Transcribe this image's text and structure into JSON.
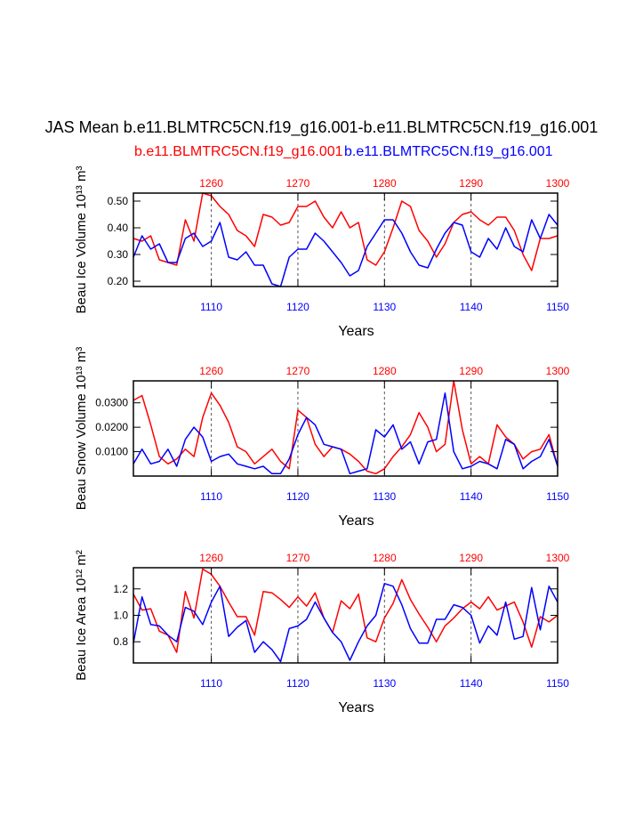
{
  "page": {
    "title": "JAS Mean b.e11.BLMTRC5CN.f19_g16.001-b.e11.BLMTRC5CN.f19_g16.001",
    "legend_red": "b.e11.BLMTRC5CN.f19_g16.001",
    "legend_blue": "b.e11.BLMTRC5CN.f19_g16.001",
    "red_color": "#ff0000",
    "blue_color": "#0000ff"
  },
  "chart_data": [
    {
      "type": "line",
      "ylabel": "Beau Ice Volume 10¹³ m³",
      "xlabel": "Years",
      "ylim": [
        0.18,
        0.53
      ],
      "yticks": [
        0.2,
        0.3,
        0.4,
        0.5
      ],
      "ytick_labels": [
        "0.20",
        "0.30",
        "0.40",
        "0.50"
      ],
      "bottom_axis": {
        "range": [
          1101,
          1150
        ],
        "ticks": [
          1110,
          1120,
          1130,
          1140,
          1150
        ],
        "labels": [
          "1110",
          "1120",
          "1130",
          "1140",
          "1150"
        ]
      },
      "top_axis": {
        "range": [
          1251,
          1300
        ],
        "ticks": [
          1260,
          1270,
          1280,
          1290,
          1300
        ],
        "labels": [
          "1260",
          "1270",
          "1280",
          "1290",
          "1300"
        ]
      },
      "vlines_at_bottom_years": [
        1110,
        1120,
        1130,
        1140
      ],
      "series": [
        {
          "name": "b.e11.BLMTRC5CN.f19_g16.001",
          "color": "red",
          "axis": "top",
          "x_start": 1251,
          "values": [
            0.36,
            0.35,
            0.37,
            0.28,
            0.27,
            0.26,
            0.43,
            0.35,
            0.53,
            0.52,
            0.48,
            0.45,
            0.39,
            0.37,
            0.33,
            0.45,
            0.44,
            0.41,
            0.42,
            0.48,
            0.48,
            0.5,
            0.44,
            0.4,
            0.46,
            0.4,
            0.42,
            0.28,
            0.26,
            0.31,
            0.4,
            0.5,
            0.48,
            0.39,
            0.35,
            0.29,
            0.34,
            0.42,
            0.45,
            0.46,
            0.43,
            0.41,
            0.44,
            0.44,
            0.39,
            0.3,
            0.24,
            0.36,
            0.36,
            0.37
          ]
        },
        {
          "name": "b.e11.BLMTRC5CN.f19_g16.001",
          "color": "blue",
          "axis": "bottom",
          "x_start": 1101,
          "values": [
            0.29,
            0.37,
            0.32,
            0.34,
            0.27,
            0.27,
            0.36,
            0.38,
            0.33,
            0.35,
            0.42,
            0.29,
            0.28,
            0.31,
            0.26,
            0.26,
            0.19,
            0.18,
            0.29,
            0.32,
            0.32,
            0.38,
            0.35,
            0.31,
            0.27,
            0.22,
            0.24,
            0.33,
            0.38,
            0.43,
            0.43,
            0.38,
            0.31,
            0.26,
            0.25,
            0.32,
            0.38,
            0.42,
            0.41,
            0.31,
            0.29,
            0.36,
            0.32,
            0.4,
            0.33,
            0.31,
            0.43,
            0.36,
            0.45,
            0.41
          ]
        }
      ]
    },
    {
      "type": "line",
      "ylabel": "Beau Snow Volume 10¹³ m³",
      "xlabel": "Years",
      "ylim": [
        0.0,
        0.039
      ],
      "yticks": [
        0.01,
        0.02,
        0.03
      ],
      "ytick_labels": [
        "0.0100",
        "0.0200",
        "0.0300"
      ],
      "bottom_axis": {
        "range": [
          1101,
          1150
        ],
        "ticks": [
          1110,
          1120,
          1130,
          1140,
          1150
        ],
        "labels": [
          "1110",
          "1120",
          "1130",
          "1140",
          "1150"
        ]
      },
      "top_axis": {
        "range": [
          1251,
          1300
        ],
        "ticks": [
          1260,
          1270,
          1280,
          1290,
          1300
        ],
        "labels": [
          "1260",
          "1270",
          "1280",
          "1290",
          "1300"
        ]
      },
      "vlines_at_bottom_years": [
        1110,
        1120,
        1130,
        1140
      ],
      "series": [
        {
          "name": "b.e11.BLMTRC5CN.f19_g16.001",
          "color": "red",
          "axis": "top",
          "x_start": 1251,
          "values": [
            0.031,
            0.033,
            0.021,
            0.008,
            0.005,
            0.007,
            0.011,
            0.008,
            0.024,
            0.034,
            0.029,
            0.022,
            0.012,
            0.01,
            0.005,
            0.008,
            0.011,
            0.006,
            0.003,
            0.027,
            0.024,
            0.013,
            0.008,
            0.012,
            0.011,
            0.009,
            0.006,
            0.002,
            0.001,
            0.003,
            0.008,
            0.012,
            0.017,
            0.026,
            0.02,
            0.01,
            0.013,
            0.039,
            0.019,
            0.005,
            0.008,
            0.005,
            0.021,
            0.016,
            0.013,
            0.007,
            0.01,
            0.011,
            0.017,
            0.004
          ]
        },
        {
          "name": "b.e11.BLMTRC5CN.f19_g16.001",
          "color": "blue",
          "axis": "bottom",
          "x_start": 1101,
          "values": [
            0.005,
            0.011,
            0.005,
            0.006,
            0.011,
            0.004,
            0.015,
            0.02,
            0.016,
            0.006,
            0.008,
            0.009,
            0.005,
            0.004,
            0.003,
            0.004,
            0.001,
            0.001,
            0.007,
            0.017,
            0.024,
            0.021,
            0.013,
            0.012,
            0.011,
            0.001,
            0.002,
            0.003,
            0.019,
            0.016,
            0.021,
            0.011,
            0.014,
            0.005,
            0.014,
            0.015,
            0.034,
            0.01,
            0.003,
            0.004,
            0.006,
            0.005,
            0.003,
            0.015,
            0.013,
            0.003,
            0.006,
            0.008,
            0.015,
            0.004
          ]
        }
      ]
    },
    {
      "type": "line",
      "ylabel": "Beau Ice Area 10¹² m²",
      "xlabel": "Years",
      "ylim": [
        0.64,
        1.36
      ],
      "yticks": [
        0.8,
        1.0,
        1.2
      ],
      "ytick_labels": [
        "0.8",
        "1.0",
        "1.2"
      ],
      "bottom_axis": {
        "range": [
          1101,
          1150
        ],
        "ticks": [
          1110,
          1120,
          1130,
          1140,
          1150
        ],
        "labels": [
          "1110",
          "1120",
          "1130",
          "1140",
          "1150"
        ]
      },
      "top_axis": {
        "range": [
          1251,
          1300
        ],
        "ticks": [
          1260,
          1270,
          1280,
          1290,
          1300
        ],
        "labels": [
          "1260",
          "1270",
          "1280",
          "1290",
          "1300"
        ]
      },
      "vlines_at_bottom_years": [
        1110,
        1120,
        1130,
        1140
      ],
      "series": [
        {
          "name": "b.e11.BLMTRC5CN.f19_g16.001",
          "color": "red",
          "axis": "top",
          "x_start": 1251,
          "values": [
            1.16,
            1.04,
            1.05,
            0.88,
            0.85,
            0.72,
            1.18,
            0.98,
            1.35,
            1.31,
            1.22,
            1.1,
            0.99,
            0.99,
            0.85,
            1.18,
            1.17,
            1.12,
            1.06,
            1.14,
            1.07,
            1.17,
            0.98,
            0.87,
            1.11,
            1.05,
            1.16,
            0.83,
            0.8,
            0.98,
            1.09,
            1.27,
            1.12,
            1.01,
            0.91,
            0.8,
            0.92,
            0.98,
            1.05,
            1.1,
            1.05,
            1.14,
            1.04,
            1.07,
            1.1,
            0.95,
            0.76,
            0.99,
            0.95,
            1.0
          ]
        },
        {
          "name": "b.e11.BLMTRC5CN.f19_g16.001",
          "color": "blue",
          "axis": "bottom",
          "x_start": 1101,
          "values": [
            0.79,
            1.14,
            0.93,
            0.92,
            0.85,
            0.8,
            1.06,
            1.03,
            0.93,
            1.1,
            1.22,
            0.84,
            0.91,
            0.96,
            0.72,
            0.8,
            0.74,
            0.65,
            0.9,
            0.92,
            0.97,
            1.1,
            0.98,
            0.87,
            0.8,
            0.66,
            0.8,
            0.92,
            1.0,
            1.24,
            1.22,
            1.08,
            0.9,
            0.79,
            0.79,
            0.97,
            0.97,
            1.08,
            1.06,
            1.0,
            0.79,
            0.92,
            0.85,
            1.1,
            0.82,
            0.84,
            1.21,
            0.89,
            1.22,
            1.1
          ]
        }
      ]
    }
  ]
}
